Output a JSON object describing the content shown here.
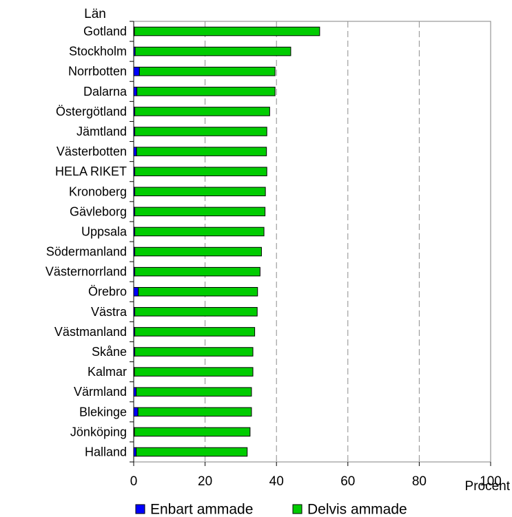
{
  "chart_data": {
    "type": "bar",
    "orientation": "horizontal",
    "stacked": true,
    "category_axis_title": "Län",
    "value_axis_title": "Procent",
    "xlim": [
      0,
      100
    ],
    "x_ticks": [
      "0",
      "20",
      "40",
      "60",
      "80",
      "100"
    ],
    "grid": "vertical dashed",
    "legend_position": "bottom",
    "categories": [
      "Gotland",
      "Stockholm",
      "Norrbotten",
      "Dalarna",
      "Östergötland",
      "Jämtland",
      "Västerbotten",
      "HELA RIKET",
      "Kronoberg",
      "Gävleborg",
      "Uppsala",
      "Södermanland",
      "Västernorrland",
      "Örebro",
      "Västra",
      "Västmanland",
      "Skåne",
      "Kalmar",
      "Värmland",
      "Blekinge",
      "Jönköping",
      "Halland"
    ],
    "series": [
      {
        "name": "Enbart ammade",
        "color": "#0000ff",
        "values": [
          0.2,
          0.4,
          1.6,
          0.9,
          0.3,
          0.3,
          0.8,
          0.3,
          0.3,
          0.3,
          0.3,
          0.3,
          0.3,
          1.3,
          0.3,
          0.3,
          0.3,
          0.2,
          0.7,
          1.2,
          0.2,
          0.7
        ]
      },
      {
        "name": "Delvis ammade",
        "color": "#00cc00",
        "values": [
          51.9,
          43.6,
          38.0,
          38.7,
          37.8,
          37.0,
          36.4,
          37.0,
          36.6,
          36.5,
          36.2,
          35.5,
          35.1,
          33.4,
          34.3,
          33.6,
          33.1,
          33.2,
          32.3,
          31.8,
          32.4,
          31.1
        ]
      }
    ]
  }
}
